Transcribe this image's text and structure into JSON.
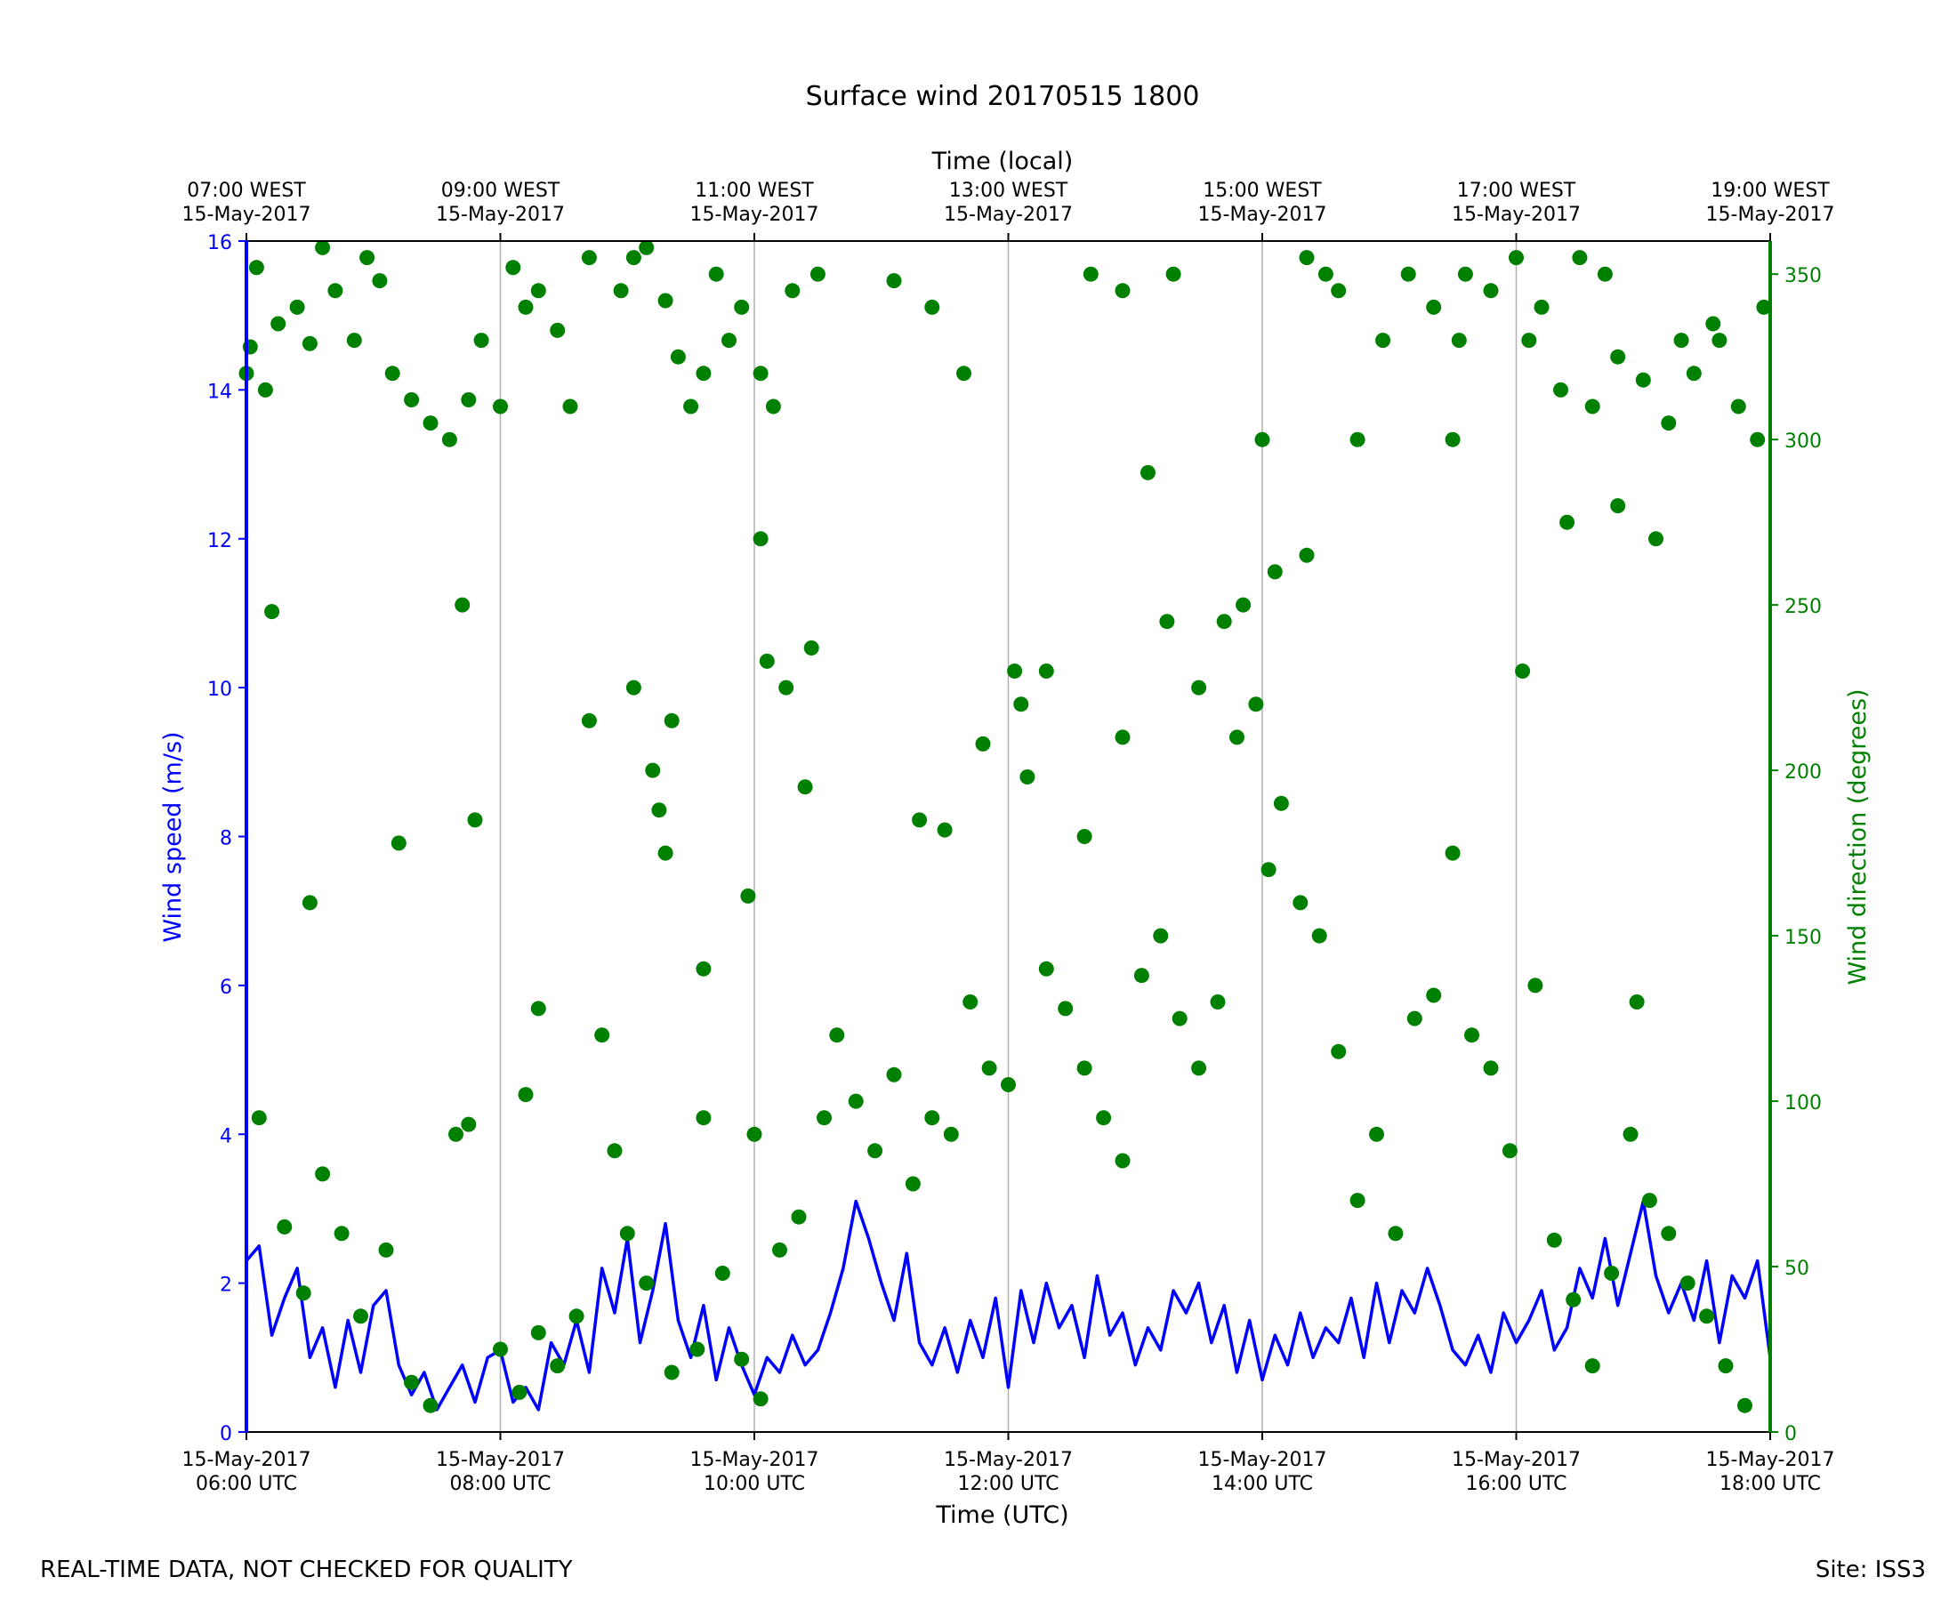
{
  "chart_data": {
    "type": "line",
    "title": "Surface wind 20170515 1800",
    "top_axis": {
      "label": "Time (local)",
      "ticks": [
        {
          "l1": "07:00 WEST",
          "l2": "15-May-2017"
        },
        {
          "l1": "09:00 WEST",
          "l2": "15-May-2017"
        },
        {
          "l1": "11:00 WEST",
          "l2": "15-May-2017"
        },
        {
          "l1": "13:00 WEST",
          "l2": "15-May-2017"
        },
        {
          "l1": "15:00 WEST",
          "l2": "15-May-2017"
        },
        {
          "l1": "17:00 WEST",
          "l2": "15-May-2017"
        },
        {
          "l1": "19:00 WEST",
          "l2": "15-May-2017"
        }
      ]
    },
    "x_axis": {
      "label": "Time (UTC)",
      "range_utc_hours": [
        6,
        18
      ],
      "ticks": [
        {
          "l1": "15-May-2017",
          "l2": "06:00 UTC"
        },
        {
          "l1": "15-May-2017",
          "l2": "08:00 UTC"
        },
        {
          "l1": "15-May-2017",
          "l2": "10:00 UTC"
        },
        {
          "l1": "15-May-2017",
          "l2": "12:00 UTC"
        },
        {
          "l1": "15-May-2017",
          "l2": "14:00 UTC"
        },
        {
          "l1": "15-May-2017",
          "l2": "16:00 UTC"
        },
        {
          "l1": "15-May-2017",
          "l2": "18:00 UTC"
        }
      ]
    },
    "y_left": {
      "label": "Wind speed (m/s)",
      "color": "#0000ff",
      "range": [
        0,
        16
      ],
      "ticks": [
        "0",
        "2",
        "4",
        "6",
        "8",
        "10",
        "12",
        "14",
        "16"
      ]
    },
    "y_right": {
      "label": "Wind direction (degrees)",
      "color": "#008000",
      "range": [
        0,
        360
      ],
      "ticks": [
        "0",
        "50",
        "100",
        "150",
        "200",
        "250",
        "300",
        "350"
      ]
    },
    "grid": "vertical lines at major x ticks",
    "series": [
      {
        "name": "Wind speed (m/s)",
        "kind": "line",
        "color": "#0000ff",
        "x": [
          6.0,
          6.1,
          6.2,
          6.3,
          6.4,
          6.5,
          6.6,
          6.7,
          6.8,
          6.9,
          7.0,
          7.1,
          7.2,
          7.3,
          7.4,
          7.5,
          7.6,
          7.7,
          7.8,
          7.9,
          8.0,
          8.1,
          8.2,
          8.3,
          8.4,
          8.5,
          8.6,
          8.7,
          8.8,
          8.9,
          9.0,
          9.1,
          9.2,
          9.3,
          9.4,
          9.5,
          9.6,
          9.7,
          9.8,
          9.9,
          10.0,
          10.1,
          10.2,
          10.3,
          10.4,
          10.5,
          10.6,
          10.7,
          10.8,
          10.9,
          11.0,
          11.1,
          11.2,
          11.3,
          11.4,
          11.5,
          11.6,
          11.7,
          11.8,
          11.9,
          12.0,
          12.1,
          12.2,
          12.3,
          12.4,
          12.5,
          12.6,
          12.7,
          12.8,
          12.9,
          13.0,
          13.1,
          13.2,
          13.3,
          13.4,
          13.5,
          13.6,
          13.7,
          13.8,
          13.9,
          14.0,
          14.1,
          14.2,
          14.3,
          14.4,
          14.5,
          14.6,
          14.7,
          14.8,
          14.9,
          15.0,
          15.1,
          15.2,
          15.3,
          15.4,
          15.5,
          15.6,
          15.7,
          15.8,
          15.9,
          16.0,
          16.1,
          16.2,
          16.3,
          16.4,
          16.5,
          16.6,
          16.7,
          16.8,
          16.9,
          17.0,
          17.1,
          17.2,
          17.3,
          17.4,
          17.5,
          17.6,
          17.7,
          17.8,
          17.9,
          18.0
        ],
        "values": [
          2.3,
          2.5,
          1.3,
          1.8,
          2.2,
          1.0,
          1.4,
          0.6,
          1.5,
          0.8,
          1.7,
          1.9,
          0.9,
          0.5,
          0.8,
          0.3,
          0.6,
          0.9,
          0.4,
          1.0,
          1.1,
          0.4,
          0.6,
          0.3,
          1.2,
          0.9,
          1.5,
          0.8,
          2.2,
          1.6,
          2.6,
          1.2,
          1.9,
          2.8,
          1.5,
          1.0,
          1.7,
          0.7,
          1.4,
          0.9,
          0.5,
          1.0,
          0.8,
          1.3,
          0.9,
          1.1,
          1.6,
          2.2,
          3.1,
          2.6,
          2.0,
          1.5,
          2.4,
          1.2,
          0.9,
          1.4,
          0.8,
          1.5,
          1.0,
          1.8,
          0.6,
          1.9,
          1.2,
          2.0,
          1.4,
          1.7,
          1.0,
          2.1,
          1.3,
          1.6,
          0.9,
          1.4,
          1.1,
          1.9,
          1.6,
          2.0,
          1.2,
          1.7,
          0.8,
          1.5,
          0.7,
          1.3,
          0.9,
          1.6,
          1.0,
          1.4,
          1.2,
          1.8,
          1.0,
          2.0,
          1.2,
          1.9,
          1.6,
          2.2,
          1.7,
          1.1,
          0.9,
          1.3,
          0.8,
          1.6,
          1.2,
          1.5,
          1.9,
          1.1,
          1.4,
          2.2,
          1.8,
          2.6,
          1.7,
          2.4,
          3.1,
          2.1,
          1.6,
          2.0,
          1.5,
          2.3,
          1.2,
          2.1,
          1.8,
          2.3,
          1.0
        ]
      },
      {
        "name": "Wind direction (degrees)",
        "kind": "scatter",
        "color": "#008000",
        "points": [
          [
            6.0,
            320
          ],
          [
            6.03,
            328
          ],
          [
            6.08,
            352
          ],
          [
            6.15,
            315
          ],
          [
            6.25,
            335
          ],
          [
            6.4,
            340
          ],
          [
            6.5,
            329
          ],
          [
            6.6,
            358
          ],
          [
            6.7,
            345
          ],
          [
            6.85,
            330
          ],
          [
            6.95,
            355
          ],
          [
            7.05,
            348
          ],
          [
            7.15,
            320
          ],
          [
            7.3,
            312
          ],
          [
            7.45,
            305
          ],
          [
            7.6,
            300
          ],
          [
            7.75,
            312
          ],
          [
            7.85,
            330
          ],
          [
            8.0,
            310
          ],
          [
            8.1,
            352
          ],
          [
            8.2,
            340
          ],
          [
            8.3,
            345
          ],
          [
            8.45,
            333
          ],
          [
            8.55,
            310
          ],
          [
            8.7,
            355
          ],
          [
            8.95,
            345
          ],
          [
            9.05,
            355
          ],
          [
            9.15,
            358
          ],
          [
            9.3,
            342
          ],
          [
            9.4,
            325
          ],
          [
            9.5,
            310
          ],
          [
            9.6,
            320
          ],
          [
            9.7,
            350
          ],
          [
            9.8,
            330
          ],
          [
            9.9,
            340
          ],
          [
            10.05,
            320
          ],
          [
            10.15,
            310
          ],
          [
            10.3,
            345
          ],
          [
            10.5,
            350
          ],
          [
            6.2,
            248
          ],
          [
            6.5,
            160
          ],
          [
            7.2,
            178
          ],
          [
            7.7,
            250
          ],
          [
            7.8,
            185
          ],
          [
            8.3,
            128
          ],
          [
            8.2,
            102
          ],
          [
            8.7,
            215
          ],
          [
            9.05,
            225
          ],
          [
            9.2,
            200
          ],
          [
            9.25,
            188
          ],
          [
            9.3,
            175
          ],
          [
            9.35,
            215
          ],
          [
            9.6,
            140
          ],
          [
            9.95,
            162
          ],
          [
            10.05,
            270
          ],
          [
            10.1,
            233
          ],
          [
            10.25,
            225
          ],
          [
            10.4,
            195
          ],
          [
            10.45,
            237
          ],
          [
            10.0,
            90
          ],
          [
            6.1,
            95
          ],
          [
            6.3,
            62
          ],
          [
            6.45,
            42
          ],
          [
            6.6,
            78
          ],
          [
            6.75,
            60
          ],
          [
            6.9,
            35
          ],
          [
            7.1,
            55
          ],
          [
            7.3,
            15
          ],
          [
            7.45,
            8
          ],
          [
            7.65,
            90
          ],
          [
            7.75,
            93
          ],
          [
            8.0,
            25
          ],
          [
            8.15,
            12
          ],
          [
            8.3,
            30
          ],
          [
            8.45,
            20
          ],
          [
            8.6,
            35
          ],
          [
            8.8,
            120
          ],
          [
            8.9,
            85
          ],
          [
            9.0,
            60
          ],
          [
            9.15,
            45
          ],
          [
            9.35,
            18
          ],
          [
            9.55,
            25
          ],
          [
            9.6,
            95
          ],
          [
            9.75,
            48
          ],
          [
            9.9,
            22
          ],
          [
            10.05,
            10
          ],
          [
            10.2,
            55
          ],
          [
            10.35,
            65
          ],
          [
            10.55,
            95
          ],
          [
            10.65,
            120
          ],
          [
            10.8,
            100
          ],
          [
            10.95,
            85
          ],
          [
            11.1,
            108
          ],
          [
            11.25,
            75
          ],
          [
            11.4,
            95
          ],
          [
            11.55,
            90
          ],
          [
            11.7,
            130
          ],
          [
            11.85,
            110
          ],
          [
            12.0,
            105
          ],
          [
            12.05,
            230
          ],
          [
            12.1,
            220
          ],
          [
            12.15,
            198
          ],
          [
            11.8,
            208
          ],
          [
            11.3,
            185
          ],
          [
            11.5,
            182
          ],
          [
            12.3,
            140
          ],
          [
            12.45,
            128
          ],
          [
            12.6,
            110
          ],
          [
            12.75,
            95
          ],
          [
            12.9,
            82
          ],
          [
            13.05,
            138
          ],
          [
            13.2,
            150
          ],
          [
            13.35,
            125
          ],
          [
            13.5,
            110
          ],
          [
            13.65,
            130
          ],
          [
            13.8,
            210
          ],
          [
            13.95,
            220
          ],
          [
            14.0,
            300
          ],
          [
            14.05,
            170
          ],
          [
            14.15,
            190
          ],
          [
            14.3,
            160
          ],
          [
            14.45,
            150
          ],
          [
            14.6,
            115
          ],
          [
            14.75,
            70
          ],
          [
            14.9,
            90
          ],
          [
            15.05,
            60
          ],
          [
            15.2,
            125
          ],
          [
            15.35,
            132
          ],
          [
            15.5,
            175
          ],
          [
            15.65,
            120
          ],
          [
            15.8,
            110
          ],
          [
            15.95,
            85
          ],
          [
            16.05,
            230
          ],
          [
            16.15,
            135
          ],
          [
            16.3,
            58
          ],
          [
            16.45,
            40
          ],
          [
            16.6,
            20
          ],
          [
            16.75,
            48
          ],
          [
            16.9,
            90
          ],
          [
            17.05,
            70
          ],
          [
            17.2,
            60
          ],
          [
            17.35,
            45
          ],
          [
            17.5,
            35
          ],
          [
            17.65,
            20
          ],
          [
            17.8,
            8
          ],
          [
            17.95,
            340
          ],
          [
            16.1,
            330
          ],
          [
            16.35,
            315
          ],
          [
            16.6,
            310
          ],
          [
            16.8,
            325
          ],
          [
            17.0,
            318
          ],
          [
            17.2,
            305
          ],
          [
            17.4,
            320
          ],
          [
            17.6,
            330
          ],
          [
            17.75,
            310
          ],
          [
            17.9,
            300
          ],
          [
            16.4,
            275
          ],
          [
            16.8,
            280
          ],
          [
            17.1,
            270
          ],
          [
            15.5,
            300
          ],
          [
            15.6,
            350
          ],
          [
            14.5,
            350
          ],
          [
            14.35,
            355
          ],
          [
            13.3,
            350
          ],
          [
            13.1,
            290
          ],
          [
            12.9,
            345
          ],
          [
            12.65,
            350
          ],
          [
            11.4,
            340
          ],
          [
            11.1,
            348
          ],
          [
            11.65,
            320
          ],
          [
            12.3,
            230
          ],
          [
            12.6,
            180
          ],
          [
            12.9,
            210
          ],
          [
            13.25,
            245
          ],
          [
            13.5,
            225
          ],
          [
            13.7,
            245
          ],
          [
            13.85,
            250
          ],
          [
            14.1,
            260
          ],
          [
            14.35,
            265
          ],
          [
            14.6,
            345
          ],
          [
            14.75,
            300
          ],
          [
            14.95,
            330
          ],
          [
            15.15,
            350
          ],
          [
            15.35,
            340
          ],
          [
            15.55,
            330
          ],
          [
            15.8,
            345
          ],
          [
            16.0,
            355
          ],
          [
            16.2,
            340
          ],
          [
            16.5,
            355
          ],
          [
            16.7,
            350
          ],
          [
            16.95,
            130
          ],
          [
            17.3,
            330
          ],
          [
            17.55,
            335
          ]
        ]
      }
    ]
  },
  "footer": {
    "left": "REAL-TIME DATA, NOT CHECKED FOR QUALITY",
    "right": "Site: ISS3"
  }
}
